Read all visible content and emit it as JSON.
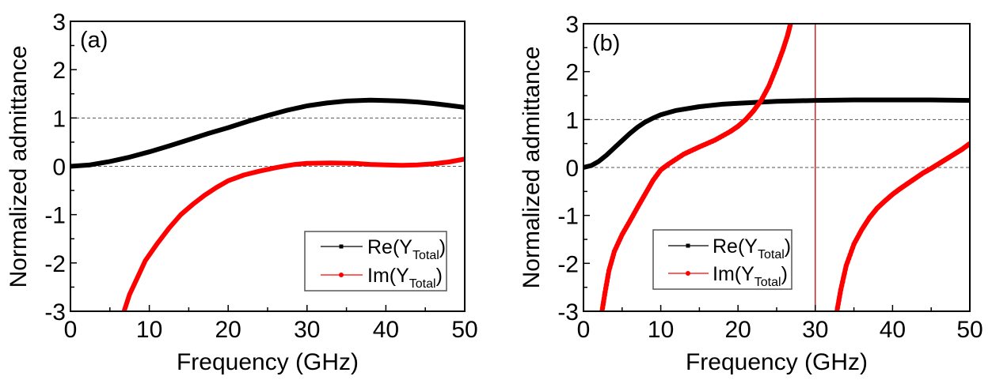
{
  "chart_data": [
    {
      "type": "line",
      "panel_label": "(a)",
      "xlabel": "Frequency (GHz)",
      "ylabel": "Normalized admittance",
      "xlim": [
        0,
        50
      ],
      "ylim": [
        -3,
        3
      ],
      "x_ticks": [
        "0",
        "10",
        "20",
        "30",
        "40",
        "50"
      ],
      "y_ticks": [
        "-3",
        "-2",
        "-1",
        "0",
        "1",
        "2",
        "3"
      ],
      "reference_lines": [
        0,
        1
      ],
      "legend_position": "lower-right",
      "series": [
        {
          "name": "Re(Y_Total)",
          "legend_main": "Re(Y",
          "legend_sub": "Total",
          "color": "#000000",
          "marker": "square",
          "x": [
            0,
            2.5,
            5,
            7.5,
            10,
            12.5,
            15,
            17.5,
            20,
            22.5,
            25,
            27.5,
            30,
            32.5,
            35,
            38,
            40,
            42,
            44,
            46,
            48,
            50
          ],
          "y": [
            0,
            0.03,
            0.1,
            0.19,
            0.3,
            0.42,
            0.55,
            0.68,
            0.8,
            0.93,
            1.05,
            1.16,
            1.25,
            1.31,
            1.35,
            1.37,
            1.36,
            1.35,
            1.33,
            1.3,
            1.26,
            1.22
          ]
        },
        {
          "name": "Im(Y_Total)",
          "legend_main": "Im(Y",
          "legend_sub": "Total",
          "color": "#ff0000",
          "marker": "circle",
          "x": [
            6.8,
            7.5,
            8.5,
            9.5,
            11,
            12.5,
            14,
            15.5,
            17,
            18.5,
            20,
            22,
            24,
            26,
            27,
            28.5,
            30,
            33,
            36,
            38,
            40,
            42,
            44,
            46,
            48,
            50
          ],
          "y": [
            -3,
            -2.65,
            -2.3,
            -1.95,
            -1.6,
            -1.28,
            -1.0,
            -0.79,
            -0.6,
            -0.44,
            -0.3,
            -0.18,
            -0.1,
            -0.03,
            0,
            0.04,
            0.06,
            0.07,
            0.06,
            0.04,
            0.03,
            0.02,
            0.03,
            0.05,
            0.09,
            0.15
          ]
        }
      ]
    },
    {
      "type": "line",
      "panel_label": "(b)",
      "xlabel": "Frequency (GHz)",
      "ylabel": "Normalized admittance",
      "xlim": [
        0,
        50
      ],
      "ylim": [
        -3,
        3
      ],
      "x_ticks": [
        "0",
        "10",
        "20",
        "30",
        "40",
        "50"
      ],
      "y_ticks": [
        "-3",
        "-2",
        "-1",
        "0",
        "1",
        "2",
        "3"
      ],
      "reference_lines": [
        0,
        1
      ],
      "vertical_line": {
        "x": 30,
        "color": "#cc0000"
      },
      "legend_position": "lower-center",
      "series": [
        {
          "name": "Re(Y_Total)",
          "legend_main": "Re(Y",
          "legend_sub": "Total",
          "color": "#000000",
          "marker": "square",
          "x": [
            0,
            1,
            2,
            3,
            4,
            5,
            6,
            7,
            8,
            9,
            10,
            12,
            15,
            18,
            20,
            25,
            30,
            35,
            40,
            45,
            50
          ],
          "y": [
            0,
            0.04,
            0.13,
            0.26,
            0.41,
            0.56,
            0.71,
            0.84,
            0.95,
            1.03,
            1.1,
            1.19,
            1.27,
            1.32,
            1.34,
            1.38,
            1.4,
            1.41,
            1.41,
            1.41,
            1.4
          ]
        },
        {
          "name": "Im(Y_Total)",
          "legend_main": "Im(Y",
          "legend_sub": "Total",
          "color": "#ff0000",
          "marker": "circle",
          "segments": [
            {
              "x": [
                2.4,
                2.8,
                3.3,
                4,
                5,
                6,
                7,
                8,
                9,
                10,
                11,
                13,
                15,
                17,
                19,
                20,
                21,
                22,
                23,
                24,
                25,
                25.8,
                26.4,
                26.8
              ],
              "y": [
                -3,
                -2.6,
                -2.15,
                -1.75,
                -1.4,
                -1.12,
                -0.83,
                -0.55,
                -0.27,
                -0.05,
                0.07,
                0.28,
                0.43,
                0.57,
                0.75,
                0.86,
                1.0,
                1.18,
                1.4,
                1.7,
                2.1,
                2.45,
                2.75,
                3
              ]
            },
            {
              "x": [
                32.8,
                33.3,
                34,
                35,
                36,
                37,
                38,
                39,
                40,
                41,
                42,
                43,
                44,
                45,
                46,
                47,
                48,
                49,
                50
              ],
              "y": [
                -3,
                -2.55,
                -2.05,
                -1.6,
                -1.3,
                -1.05,
                -0.85,
                -0.7,
                -0.56,
                -0.44,
                -0.33,
                -0.22,
                -0.11,
                -0.02,
                0.08,
                0.18,
                0.28,
                0.38,
                0.5
              ]
            }
          ]
        }
      ]
    }
  ]
}
